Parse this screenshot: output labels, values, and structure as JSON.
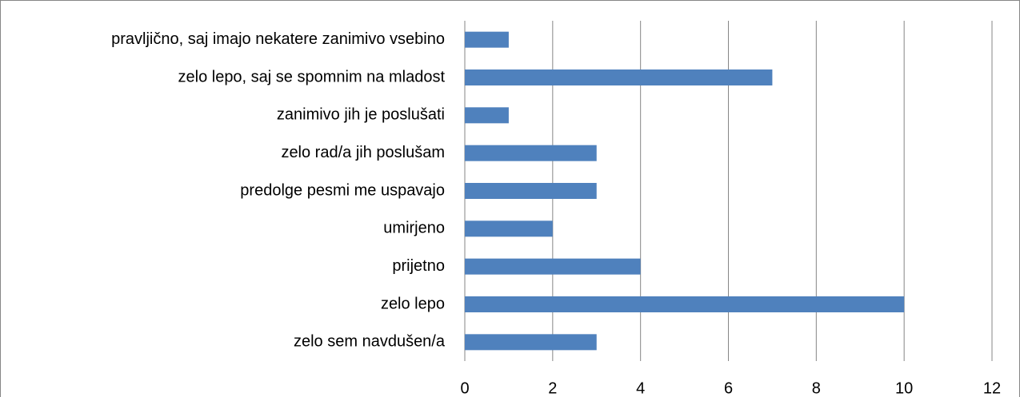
{
  "chart_data": {
    "type": "bar",
    "orientation": "horizontal",
    "categories": [
      "pravljično, saj imajo nekatere zanimivo vsebino",
      "zelo lepo, saj se spomnim na mladost",
      "zanimivo jih je poslušati",
      "zelo rad/a jih poslušam",
      "predolge pesmi me uspavajo",
      "umirjeno",
      "prijetno",
      "zelo lepo",
      "zelo sem navdušen/a"
    ],
    "values": [
      1,
      7,
      1,
      3,
      3,
      2,
      4,
      10,
      3
    ],
    "color": "#4f81bd",
    "xlim": [
      0,
      12
    ],
    "xticks": [
      0,
      2,
      4,
      6,
      8,
      10,
      12
    ],
    "grid": true
  }
}
